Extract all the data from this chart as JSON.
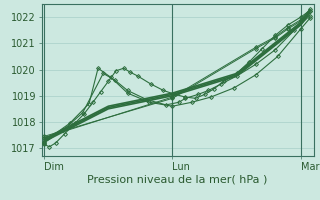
{
  "bg_color": "#cce8e0",
  "grid_color": "#a8cfc8",
  "line_color": "#2d6e3e",
  "marker_color": "#2d6e3e",
  "xlabel": "Pression niveau de la mer( hPa )",
  "ylim": [
    1016.7,
    1022.5
  ],
  "yticks": [
    1017,
    1018,
    1019,
    1020,
    1021,
    1022
  ],
  "xlim": [
    -0.02,
    2.1
  ],
  "xticks": [
    0.0,
    1.0,
    2.0
  ],
  "xticklabels": [
    "Dim",
    "Lun",
    "Mar"
  ],
  "series": [
    {
      "x": [
        0.0,
        0.04,
        0.09,
        0.16,
        0.24,
        0.31,
        0.38,
        0.44,
        0.5,
        0.56,
        0.62,
        0.67,
        0.73,
        0.83,
        0.93,
        1.02,
        1.1,
        1.18,
        1.25,
        1.32,
        1.4,
        1.5,
        1.6,
        1.7,
        1.8,
        1.9,
        2.0,
        2.07
      ],
      "y": [
        1017.15,
        1017.05,
        1017.2,
        1017.55,
        1017.95,
        1018.3,
        1018.75,
        1019.15,
        1019.55,
        1019.95,
        1020.05,
        1019.9,
        1019.75,
        1019.45,
        1019.2,
        1019.05,
        1018.95,
        1018.9,
        1019.05,
        1019.25,
        1019.55,
        1019.85,
        1020.3,
        1020.8,
        1021.3,
        1021.7,
        1022.0,
        1022.25
      ],
      "marker": "D",
      "markersize": 2.0,
      "lw": 0.8,
      "ls": "-"
    },
    {
      "x": [
        0.0,
        0.15,
        0.3,
        0.46,
        0.55,
        0.65,
        0.8,
        0.95,
        1.05,
        1.1,
        1.2,
        1.28,
        1.38,
        1.5,
        1.65,
        1.8,
        1.95,
        2.07
      ],
      "y": [
        1017.2,
        1017.7,
        1018.35,
        1019.85,
        1019.6,
        1019.2,
        1018.85,
        1018.65,
        1018.75,
        1018.9,
        1019.05,
        1019.2,
        1019.45,
        1019.75,
        1020.2,
        1020.75,
        1021.5,
        1022.05
      ],
      "marker": "D",
      "markersize": 2.0,
      "lw": 0.8,
      "ls": "-"
    },
    {
      "x": [
        0.0,
        0.2,
        0.35,
        0.42,
        0.52,
        0.65,
        0.82,
        1.0,
        1.15,
        1.3,
        1.48,
        1.65,
        1.82,
        2.0,
        2.07
      ],
      "y": [
        1017.25,
        1017.95,
        1018.7,
        1020.05,
        1019.7,
        1019.1,
        1018.75,
        1018.6,
        1018.75,
        1018.95,
        1019.3,
        1019.8,
        1020.5,
        1021.55,
        1021.95
      ],
      "marker": "D",
      "markersize": 2.0,
      "lw": 0.8,
      "ls": "-"
    },
    {
      "x": [
        0.0,
        0.5,
        1.0,
        1.5,
        2.0,
        2.07
      ],
      "y": [
        1017.3,
        1018.55,
        1019.05,
        1019.8,
        1021.75,
        1022.2
      ],
      "marker": null,
      "markersize": 0,
      "lw": 1.2,
      "ls": "-"
    },
    {
      "x": [
        0.0,
        0.5,
        1.0,
        1.5,
        2.0,
        2.07
      ],
      "y": [
        1017.35,
        1018.6,
        1019.1,
        1019.85,
        1021.8,
        1022.25
      ],
      "marker": null,
      "markersize": 0,
      "lw": 1.2,
      "ls": "-"
    },
    {
      "x": [
        0.0,
        0.5,
        1.0,
        1.5,
        2.0,
        2.07
      ],
      "y": [
        1017.25,
        1018.5,
        1019.0,
        1019.75,
        1021.7,
        1022.15
      ],
      "marker": null,
      "markersize": 0,
      "lw": 1.2,
      "ls": "-"
    },
    {
      "x": [
        0.0,
        1.0,
        1.65,
        1.8,
        1.9,
        2.0,
        2.07
      ],
      "y": [
        1017.4,
        1018.95,
        1020.85,
        1021.25,
        1021.6,
        1021.9,
        1022.3
      ],
      "marker": "D",
      "markersize": 2.0,
      "lw": 0.7,
      "ls": "-"
    },
    {
      "x": [
        0.0,
        1.0,
        1.65,
        1.8,
        1.9,
        2.0,
        2.07
      ],
      "y": [
        1017.45,
        1018.9,
        1020.8,
        1021.2,
        1021.55,
        1021.85,
        1022.25
      ],
      "marker": "D",
      "markersize": 2.0,
      "lw": 0.7,
      "ls": "-"
    }
  ],
  "vlines": [
    0.0,
    1.0,
    2.0
  ],
  "vline_color": "#3a7060",
  "spine_color": "#3a7060",
  "tick_color": "#3a7060",
  "label_color": "#2a5a30",
  "xlabel_fontsize": 8.0,
  "tick_fontsize": 7.0
}
